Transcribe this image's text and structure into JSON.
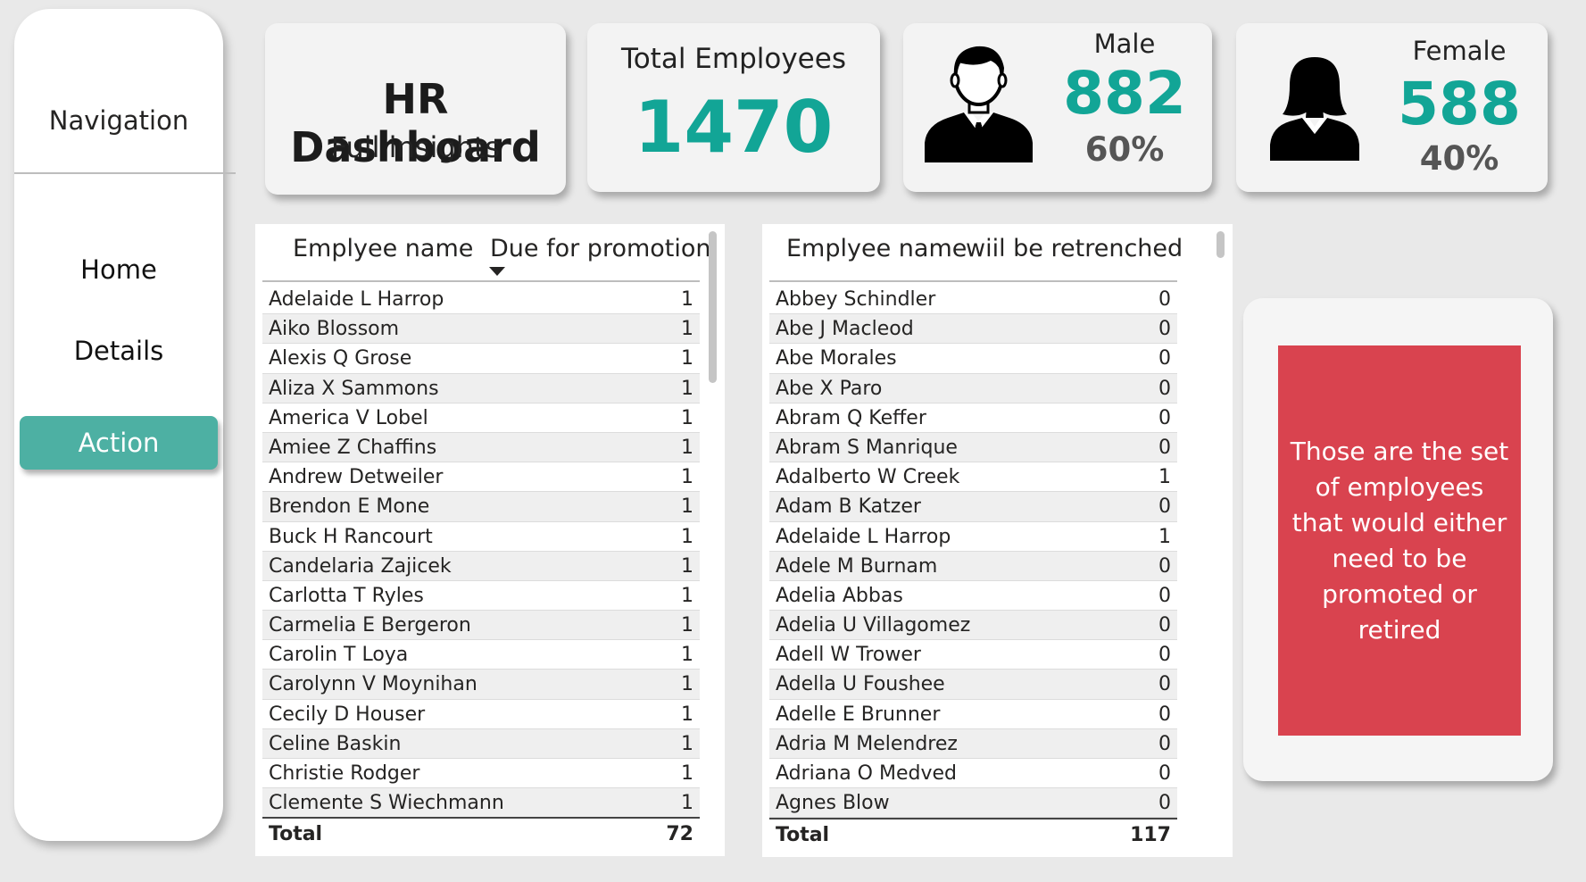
{
  "navigation": {
    "title": "Navigation",
    "items": [
      {
        "label": "Home"
      },
      {
        "label": "Details"
      },
      {
        "label": "Action"
      }
    ]
  },
  "header": {
    "title": "HR Dashboard",
    "subtitle": "Full insights"
  },
  "kpis": {
    "total_label": "Total Employees",
    "total_value": "1470",
    "male_label": "Male",
    "male_value": "882",
    "male_pct": "60%",
    "female_label": "Female",
    "female_value": "588",
    "female_pct": "40%",
    "accent_color": "#12a596"
  },
  "promotion_table": {
    "col_name": "Emplyee name",
    "col_value": "Due for promotion",
    "rows": [
      {
        "name": "Adelaide L Harrop",
        "value": "1"
      },
      {
        "name": "Aiko Blossom",
        "value": "1"
      },
      {
        "name": "Alexis Q Grose",
        "value": "1"
      },
      {
        "name": "Aliza X Sammons",
        "value": "1"
      },
      {
        "name": "America V Lobel",
        "value": "1"
      },
      {
        "name": "Amiee Z Chaffins",
        "value": "1"
      },
      {
        "name": "Andrew Detweiler",
        "value": "1"
      },
      {
        "name": "Brendon E Mone",
        "value": "1"
      },
      {
        "name": "Buck H Rancourt",
        "value": "1"
      },
      {
        "name": "Candelaria Zajicek",
        "value": "1"
      },
      {
        "name": "Carlotta T Ryles",
        "value": "1"
      },
      {
        "name": "Carmelia E Bergeron",
        "value": "1"
      },
      {
        "name": "Carolin T Loya",
        "value": "1"
      },
      {
        "name": "Carolynn V Moynihan",
        "value": "1"
      },
      {
        "name": "Cecily D Houser",
        "value": "1"
      },
      {
        "name": "Celine Baskin",
        "value": "1"
      },
      {
        "name": "Christie Rodger",
        "value": "1"
      },
      {
        "name": "Clemente S Wiechmann",
        "value": "1"
      }
    ],
    "total_label": "Total",
    "total_value": "72"
  },
  "retrench_table": {
    "col_name": "Emplyee name",
    "col_value": "wiil be retrenched",
    "rows": [
      {
        "name": "Abbey Schindler",
        "value": "0"
      },
      {
        "name": "Abe J Macleod",
        "value": "0"
      },
      {
        "name": "Abe Morales",
        "value": "0"
      },
      {
        "name": "Abe X Paro",
        "value": "0"
      },
      {
        "name": "Abram Q Keffer",
        "value": "0"
      },
      {
        "name": "Abram S Manrique",
        "value": "0"
      },
      {
        "name": "Adalberto W Creek",
        "value": "1"
      },
      {
        "name": "Adam B Katzer",
        "value": "0"
      },
      {
        "name": "Adelaide L Harrop",
        "value": "1"
      },
      {
        "name": "Adele M Burnam",
        "value": "0"
      },
      {
        "name": "Adelia Abbas",
        "value": "0"
      },
      {
        "name": "Adelia U Villagomez",
        "value": "0"
      },
      {
        "name": "Adell W Trower",
        "value": "0"
      },
      {
        "name": "Adella U Foushee",
        "value": "0"
      },
      {
        "name": "Adelle E Brunner",
        "value": "0"
      },
      {
        "name": "Adria M Melendrez",
        "value": "0"
      },
      {
        "name": "Adriana O Medved",
        "value": "0"
      },
      {
        "name": "Agnes Blow",
        "value": "0"
      }
    ],
    "total_label": "Total",
    "total_value": "117"
  },
  "note": {
    "text": "Those are the set of employees that would either need to be promoted or retired",
    "color": "#d9434f"
  },
  "icons": {
    "male": "male-person-icon",
    "female": "female-person-icon",
    "sort": "sort-descending-icon"
  }
}
